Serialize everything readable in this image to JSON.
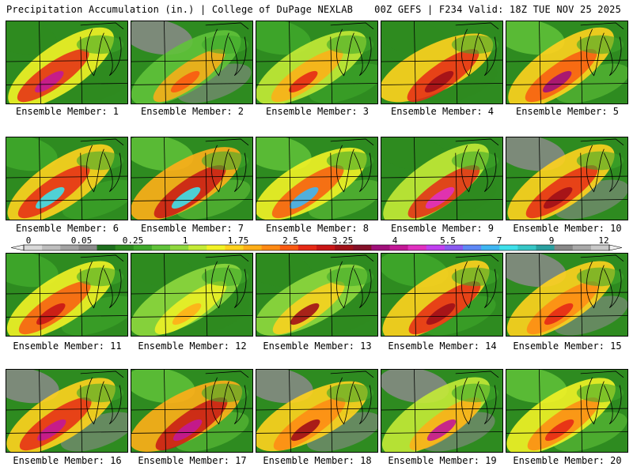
{
  "header": {
    "left": "Precipitation Accumulation (in.) | College of DuPage NEXLAB",
    "right": "00Z GEFS | F234 Valid: 18Z TUE NOV 25 2025"
  },
  "colorbar": {
    "labels": [
      "0",
      "0.05",
      "0.25",
      "1",
      "1.75",
      "2.5",
      "3.25",
      "4",
      "5.5",
      "7",
      "9",
      "12"
    ],
    "colors": [
      "#d9d9d9",
      "#bdbdbd",
      "#a3a3a3",
      "#8a8a8a",
      "#1e6e1e",
      "#2e8b20",
      "#3fa82c",
      "#60c23a",
      "#8fd83e",
      "#c4ea36",
      "#f2f226",
      "#ffd21e",
      "#ffae18",
      "#ff8a14",
      "#f95a12",
      "#e62a16",
      "#c81616",
      "#a01018",
      "#841028",
      "#a0107a",
      "#c21896",
      "#e030c0",
      "#c040f0",
      "#8a5af0",
      "#5f88f5",
      "#3fb6f2",
      "#3fe0ea",
      "#36c6c6",
      "#2aa0a0",
      "#888888",
      "#a8a8a8",
      "#c8c8c8"
    ]
  },
  "members": [
    {
      "label": "Ensemble Member: 1",
      "colors": [
        "#2e8b20",
        "#f2f226",
        "#e62a16",
        "#c21896"
      ]
    },
    {
      "label": "Ensemble Member: 2",
      "colors": [
        "#8a8a8a",
        "#60c23a",
        "#ffae18",
        "#f95a12"
      ]
    },
    {
      "label": "Ensemble Member: 3",
      "colors": [
        "#3fa82c",
        "#c4ea36",
        "#ffae18",
        "#e62a16"
      ]
    },
    {
      "label": "Ensemble Member: 4",
      "colors": [
        "#2e8b20",
        "#ffd21e",
        "#e62a16",
        "#a01018"
      ]
    },
    {
      "label": "Ensemble Member: 5",
      "colors": [
        "#60c23a",
        "#ffd21e",
        "#f95a12",
        "#a0107a"
      ]
    },
    {
      "label": "Ensemble Member: 6",
      "colors": [
        "#3fa82c",
        "#ffd21e",
        "#e62a16",
        "#3fe0ea"
      ]
    },
    {
      "label": "Ensemble Member: 7",
      "colors": [
        "#60c23a",
        "#ffae18",
        "#c81616",
        "#3fe0ea"
      ]
    },
    {
      "label": "Ensemble Member: 8",
      "colors": [
        "#60c23a",
        "#f2f226",
        "#f95a12",
        "#3fb6f2"
      ]
    },
    {
      "label": "Ensemble Member: 9",
      "colors": [
        "#2e8b20",
        "#c4ea36",
        "#e62a16",
        "#e030c0"
      ]
    },
    {
      "label": "Ensemble Member: 10",
      "colors": [
        "#8a8a8a",
        "#ffd21e",
        "#e62a16",
        "#a01018"
      ]
    },
    {
      "label": "Ensemble Member: 11",
      "colors": [
        "#3fa82c",
        "#f2f226",
        "#f95a12",
        "#c81616"
      ]
    },
    {
      "label": "Ensemble Member: 12",
      "colors": [
        "#2e8b20",
        "#8fd83e",
        "#f2f226",
        "#ffae18"
      ]
    },
    {
      "label": "Ensemble Member: 13",
      "colors": [
        "#2e8b20",
        "#8fd83e",
        "#ffd21e",
        "#a01018"
      ]
    },
    {
      "label": "Ensemble Member: 14",
      "colors": [
        "#3fa82c",
        "#ffd21e",
        "#e62a16",
        "#a01018"
      ]
    },
    {
      "label": "Ensemble Member: 15",
      "colors": [
        "#8a8a8a",
        "#ffd21e",
        "#ff8a14",
        "#e62a16"
      ]
    },
    {
      "label": "Ensemble Member: 16",
      "colors": [
        "#8a8a8a",
        "#ffd21e",
        "#e62a16",
        "#c21896"
      ]
    },
    {
      "label": "Ensemble Member: 17",
      "colors": [
        "#60c23a",
        "#ffae18",
        "#c81616",
        "#c21896"
      ]
    },
    {
      "label": "Ensemble Member: 18",
      "colors": [
        "#8a8a8a",
        "#ffd21e",
        "#ff8a14",
        "#a01018"
      ]
    },
    {
      "label": "Ensemble Member: 19",
      "colors": [
        "#8a8a8a",
        "#c4ea36",
        "#ffae18",
        "#c21896"
      ]
    },
    {
      "label": "Ensemble Member: 20",
      "colors": [
        "#60c23a",
        "#f2f226",
        "#ff8a14",
        "#e62a16"
      ]
    }
  ]
}
